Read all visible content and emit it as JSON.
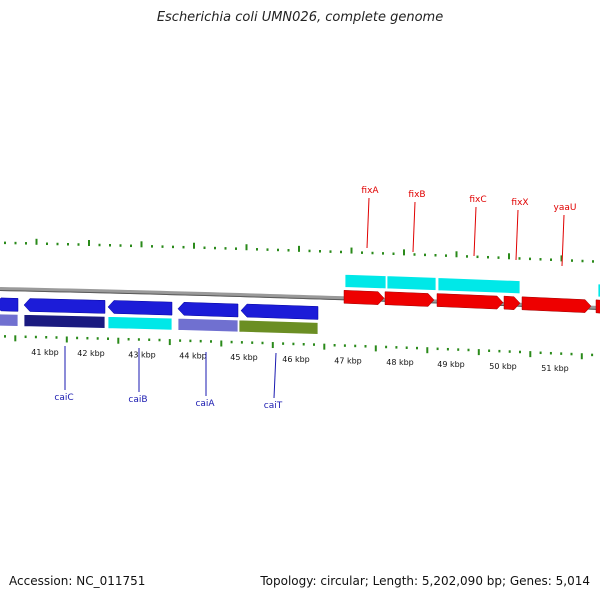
{
  "title": "Escherichia coli UMN026, complete genome",
  "footer": {
    "accession": "Accession: NC_011751",
    "summary": "Topology: circular; Length: 5,202,090 bp; Genes: 5,014"
  },
  "colors": {
    "tick": "#2a8a1a",
    "backbone": "#888888",
    "blue": "#1c1cd8",
    "navy": "#1a1a80",
    "cyan": "#00e8e8",
    "slate": "#7070d0",
    "olive": "#6b8e23",
    "red": "#ee0000",
    "label_red": "#e00000",
    "label_blue": "#1a1ab0"
  },
  "scale_labels": [
    "41 kbp",
    "42 kbp",
    "43 kbp",
    "44 kbp",
    "45 kbp",
    "46 kbp",
    "47 kbp",
    "48 kbp",
    "49 kbp",
    "50 kbp",
    "51 kbp"
  ],
  "genes_top": [
    "fixA",
    "fixB",
    "fixC",
    "fixX",
    "yaaU"
  ],
  "genes_bottom": [
    "caiC",
    "caiB",
    "caiA",
    "caiT"
  ]
}
